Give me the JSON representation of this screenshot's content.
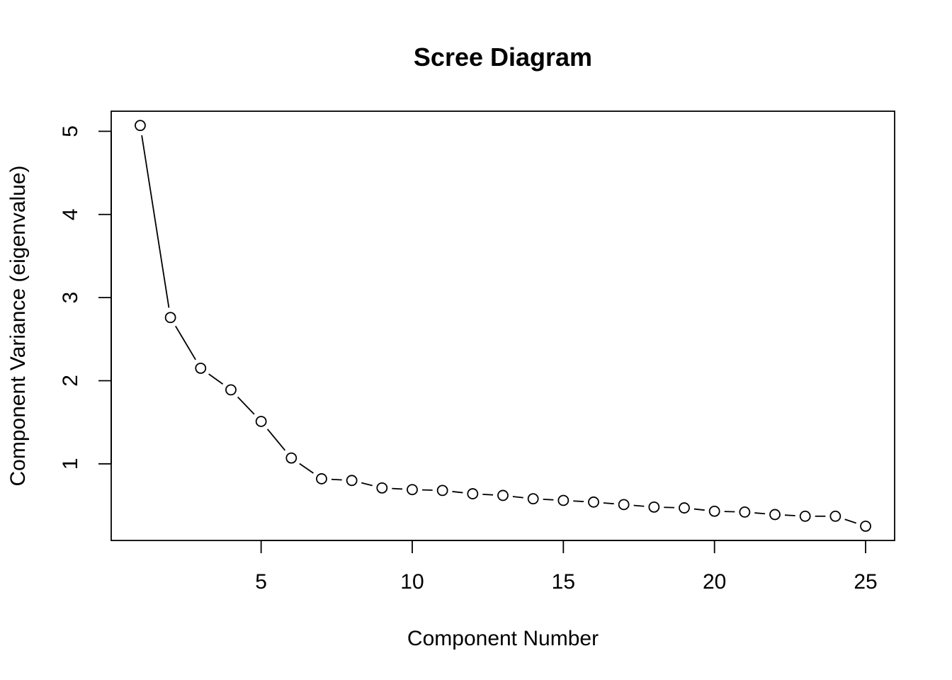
{
  "chart_data": {
    "type": "line",
    "title": "Scree Diagram",
    "xlabel": "Component Number",
    "ylabel": "Component Variance (eigenvalue)",
    "x": [
      1,
      2,
      3,
      4,
      5,
      6,
      7,
      8,
      9,
      10,
      11,
      12,
      13,
      14,
      15,
      16,
      17,
      18,
      19,
      20,
      21,
      22,
      23,
      24,
      25
    ],
    "series": [
      {
        "values": [
          5.07,
          2.76,
          2.15,
          1.89,
          1.51,
          1.07,
          0.82,
          0.8,
          0.71,
          0.69,
          0.68,
          0.64,
          0.62,
          0.58,
          0.56,
          0.54,
          0.51,
          0.48,
          0.47,
          0.43,
          0.42,
          0.39,
          0.37,
          0.37,
          0.25
        ]
      }
    ],
    "xticks": [
      5,
      10,
      15,
      20,
      25
    ],
    "yticks": [
      1,
      2,
      3,
      4,
      5
    ],
    "xlim": [
      0.04,
      25.96
    ],
    "ylim": [
      0.0784,
      5.2416
    ],
    "grid": false,
    "legend": "none",
    "marker": "open-circle",
    "line_style": "dashed-connectors"
  }
}
